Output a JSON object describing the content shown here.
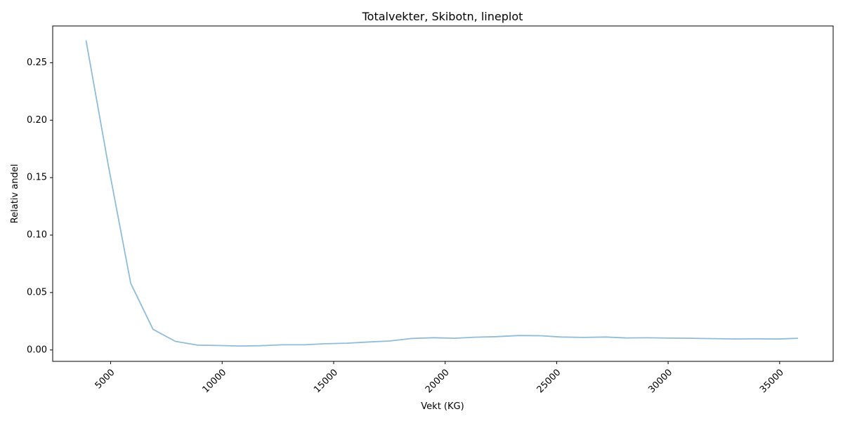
{
  "chart_data": {
    "type": "line",
    "title": "Totalvekter, Skibotn, lineplot",
    "xlabel": "Vekt (KG)",
    "ylabel": "Relativ andel",
    "xlim": [
      2400,
      37400
    ],
    "ylim": [
      -0.0099,
      0.282
    ],
    "xticks": [
      5000,
      10000,
      15000,
      20000,
      25000,
      30000,
      35000
    ],
    "yticks": [
      0.0,
      0.05,
      0.1,
      0.15,
      0.2,
      0.25
    ],
    "ytick_labels": [
      "0.00",
      "0.05",
      "0.10",
      "0.15",
      "0.20",
      "0.25"
    ],
    "grid": false,
    "legend": "none",
    "series": [
      {
        "color": "#8fbcd9",
        "x": [
          3900,
          4900,
          5900,
          6900,
          7900,
          8900,
          9800,
          10800,
          11700,
          12700,
          13700,
          14600,
          15600,
          16600,
          17500,
          18500,
          19500,
          20400,
          21300,
          22300,
          23300,
          24300,
          25200,
          26200,
          27200,
          28100,
          29100,
          30100,
          31000,
          32000,
          33000,
          33900,
          34900,
          35800
        ],
        "y": [
          0.269,
          0.16,
          0.058,
          0.018,
          0.0075,
          0.0042,
          0.0039,
          0.0035,
          0.0037,
          0.0045,
          0.0045,
          0.0054,
          0.0059,
          0.007,
          0.0078,
          0.01,
          0.0107,
          0.0102,
          0.0111,
          0.0116,
          0.0126,
          0.0124,
          0.0113,
          0.0109,
          0.0113,
          0.0105,
          0.0106,
          0.0103,
          0.0102,
          0.0099,
          0.0096,
          0.0097,
          0.0095,
          0.0102
        ]
      }
    ]
  }
}
